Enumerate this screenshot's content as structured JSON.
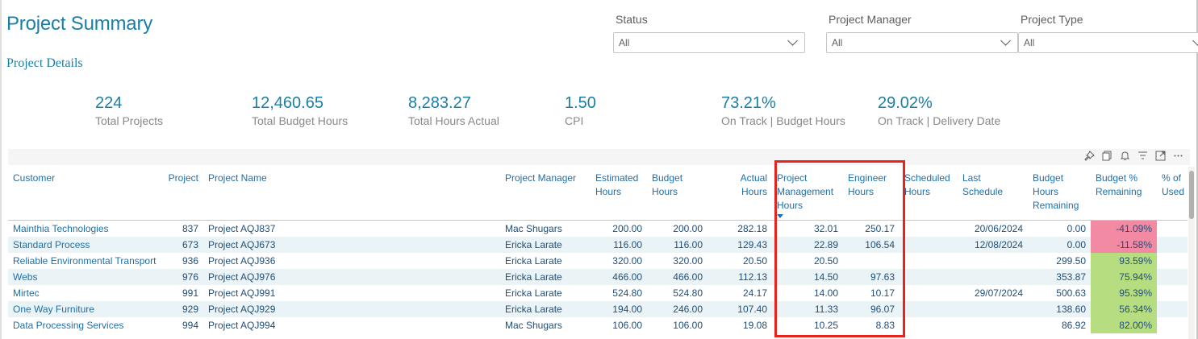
{
  "header": {
    "title": "Project Summary",
    "section": "Project Details"
  },
  "filters": [
    {
      "label": "Status",
      "value": "All"
    },
    {
      "label": "Project Manager",
      "value": "All"
    },
    {
      "label": "Project Type",
      "value": "All"
    }
  ],
  "kpis": [
    {
      "value": "224",
      "label": "Total Projects"
    },
    {
      "value": "12,460.65",
      "label": "Total Budget Hours"
    },
    {
      "value": "8,283.27",
      "label": "Total Hours Actual"
    },
    {
      "value": "1.50",
      "label": "CPI"
    },
    {
      "value": "73.21%",
      "label": "On Track | Budget Hours"
    },
    {
      "value": "29.02%",
      "label": "On Track | Delivery Date"
    }
  ],
  "visual_icons": [
    "pin-icon",
    "copy-icon",
    "bell-icon",
    "filter-icon",
    "focus-mode-icon",
    "more-options-icon"
  ],
  "table": {
    "columns": [
      {
        "label": "Customer"
      },
      {
        "label": "Project"
      },
      {
        "label": "Project Name"
      },
      {
        "label": "Project Manager"
      },
      {
        "label": "Estimated Hours"
      },
      {
        "label": "Budget Hours"
      },
      {
        "label": "Actual Hours"
      },
      {
        "label": "Project Management Hours"
      },
      {
        "label": "Engineer Hours"
      },
      {
        "label": "Scheduled Hours"
      },
      {
        "label": "Last Schedule"
      },
      {
        "label": "Budget Hours Remaining"
      },
      {
        "label": "Budget % Remaining"
      },
      {
        "label": "% of Used"
      }
    ],
    "rows": [
      {
        "customer": "Mainthia Technologies",
        "project": "837",
        "name": "Project AQJ837",
        "manager": "Mac Shugars",
        "estimated": "200.00",
        "budget": "200.00",
        "actual": "282.18",
        "pm": "32.01",
        "eng": "250.17",
        "scheduled": "",
        "last": "20/06/2024",
        "remaining": "0.00",
        "pct": "-41.09%",
        "pct_status": "negative",
        "used": ""
      },
      {
        "customer": "Standard Process",
        "project": "673",
        "name": "Project AQJ673",
        "manager": "Ericka Larate",
        "estimated": "116.00",
        "budget": "116.00",
        "actual": "129.43",
        "pm": "22.89",
        "eng": "106.54",
        "scheduled": "",
        "last": "12/08/2024",
        "remaining": "0.00",
        "pct": "-11.58%",
        "pct_status": "negative",
        "used": ""
      },
      {
        "customer": "Reliable Environmental Transport",
        "project": "936",
        "name": "Project AQJ936",
        "manager": "Ericka Larate",
        "estimated": "320.00",
        "budget": "320.00",
        "actual": "20.50",
        "pm": "20.50",
        "eng": "",
        "scheduled": "",
        "last": "",
        "remaining": "299.50",
        "pct": "93.59%",
        "pct_status": "positive",
        "used": ""
      },
      {
        "customer": "Webs",
        "project": "976",
        "name": "Project AQJ976",
        "manager": "Ericka Larate",
        "estimated": "466.00",
        "budget": "466.00",
        "actual": "112.13",
        "pm": "14.50",
        "eng": "97.63",
        "scheduled": "",
        "last": "",
        "remaining": "353.87",
        "pct": "75.94%",
        "pct_status": "positive",
        "used": ""
      },
      {
        "customer": "Mirtec",
        "project": "991",
        "name": "Project AQJ991",
        "manager": "Ericka Larate",
        "estimated": "524.80",
        "budget": "524.80",
        "actual": "24.17",
        "pm": "14.00",
        "eng": "10.17",
        "scheduled": "",
        "last": "29/07/2024",
        "remaining": "500.63",
        "pct": "95.39%",
        "pct_status": "positive",
        "used": ""
      },
      {
        "customer": "One Way Furniture",
        "project": "929",
        "name": "Project AQJ929",
        "manager": "Ericka Larate",
        "estimated": "194.00",
        "budget": "246.00",
        "actual": "107.40",
        "pm": "11.33",
        "eng": "96.07",
        "scheduled": "",
        "last": "",
        "remaining": "138.60",
        "pct": "56.34%",
        "pct_status": "positive",
        "used": ""
      },
      {
        "customer": "Data Processing Services",
        "project": "994",
        "name": "Project AQJ994",
        "manager": "Mac Shugars",
        "estimated": "106.00",
        "budget": "106.00",
        "actual": "19.08",
        "pm": "10.25",
        "eng": "8.83",
        "scheduled": "",
        "last": "",
        "remaining": "86.92",
        "pct": "82.00%",
        "pct_status": "positive",
        "used": ""
      }
    ]
  },
  "colors": {
    "accent": "#1a7fa6",
    "negative_fill": "#f38aa3",
    "positive_fill": "#b7dd81",
    "highlight": "#e8231c"
  }
}
